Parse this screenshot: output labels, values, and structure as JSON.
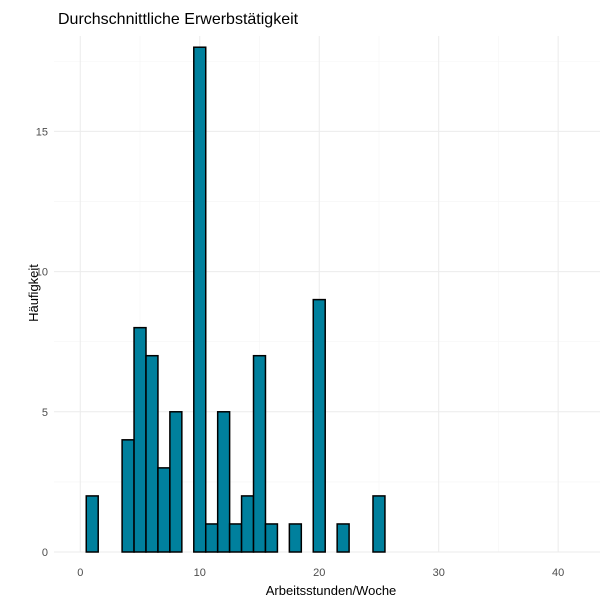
{
  "chart_data": {
    "type": "bar",
    "title": "Durchschnittliche Erwerbstätigkeit",
    "xlabel": "Arbeitsstunden/Woche",
    "ylabel": "Häufigkeit",
    "fill_color": "#00809D",
    "outline_color": "#000000",
    "xlim": [
      -2.2,
      43.5
    ],
    "ylim": [
      0,
      18.4
    ],
    "x_ticks": [
      0,
      10,
      20,
      30,
      40
    ],
    "y_ticks": [
      0,
      5,
      10,
      15
    ],
    "bin_width": 1,
    "x": [
      1,
      2,
      3,
      4,
      5,
      6,
      7,
      8,
      9,
      10,
      11,
      12,
      13,
      14,
      15,
      16,
      17,
      18,
      19,
      20,
      21,
      22,
      23,
      24,
      25,
      26,
      27,
      28,
      29,
      30,
      31,
      32,
      33,
      34,
      35,
      36,
      37,
      38,
      39,
      40,
      41
    ],
    "values": [
      2,
      0,
      0,
      4,
      8,
      7,
      3,
      5,
      0,
      18,
      1,
      5,
      1,
      2,
      7,
      1,
      0,
      1,
      0,
      9,
      0,
      1,
      0,
      0,
      2,
      0,
      0,
      0,
      0,
      0,
      0,
      0,
      0,
      0,
      0,
      0,
      0,
      0,
      0,
      0,
      0
    ],
    "grid": true
  }
}
